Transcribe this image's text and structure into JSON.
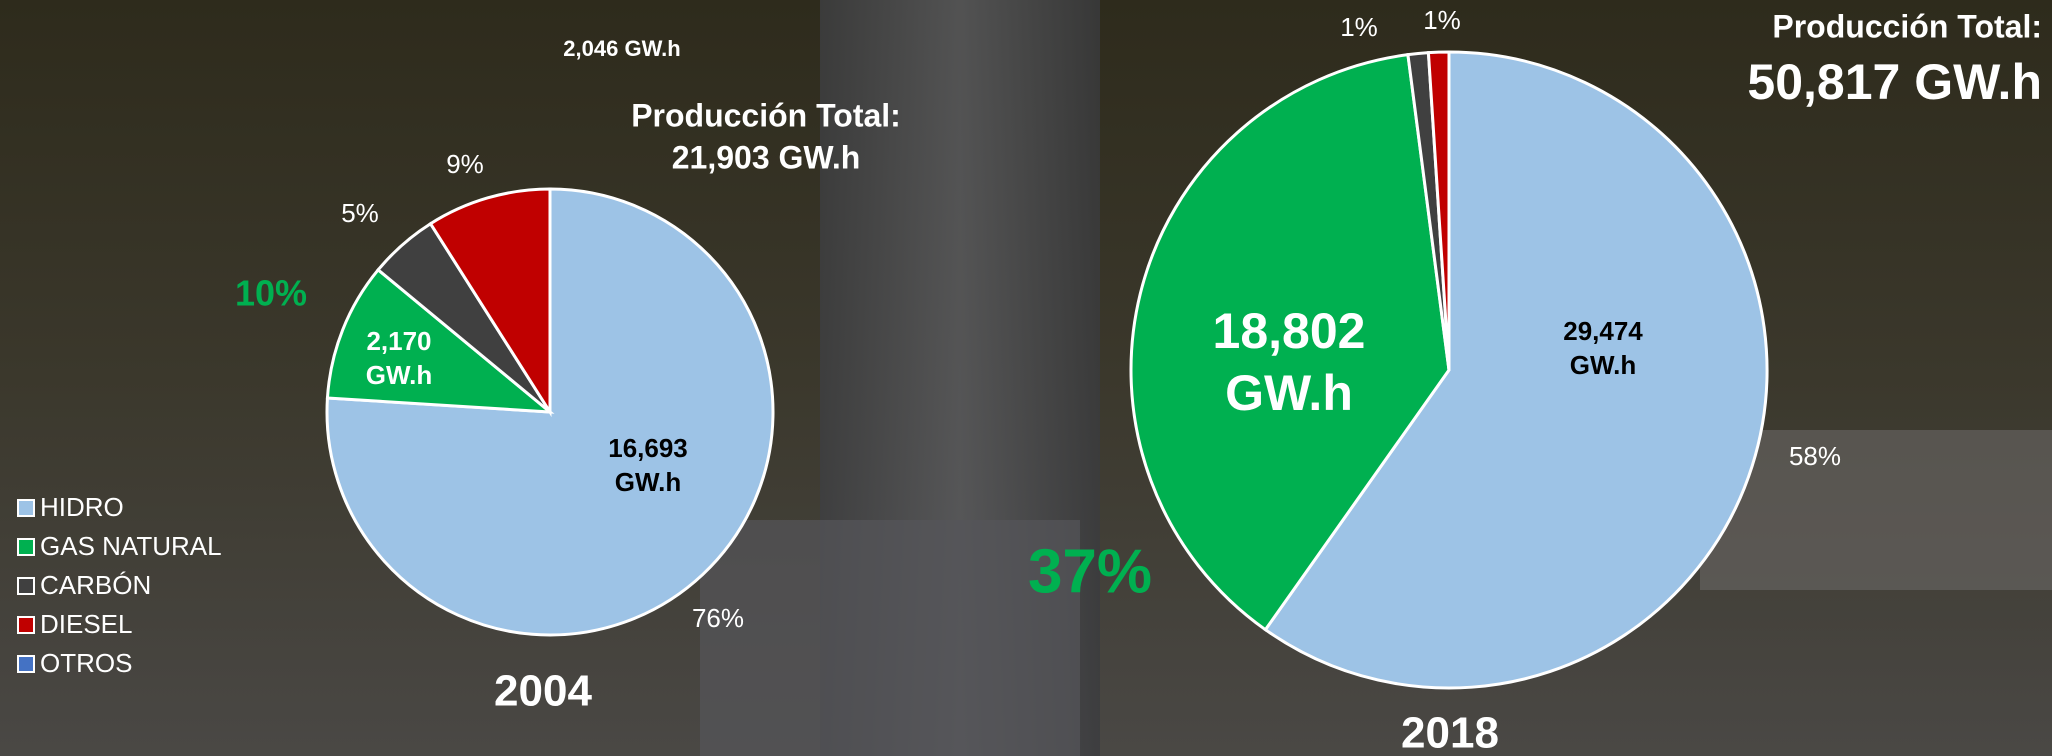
{
  "chart_data": [
    {
      "type": "pie",
      "title": "2004",
      "total_label": "Producción Total:",
      "total": "21,903 GW.h",
      "categories": [
        "HIDRO",
        "GAS NATURAL",
        "CARBÓN",
        "DIESEL"
      ],
      "colors": [
        "#9dc3e6",
        "#00b050",
        "#404040",
        "#c00000"
      ],
      "values": [
        76,
        10,
        5,
        9
      ],
      "value_labels": [
        "76%",
        "10%",
        "5%",
        "9%"
      ],
      "energy": [
        16693,
        2170,
        null,
        2046
      ],
      "energy_labels": [
        "16,693 GW.h",
        "2,170 GW.h",
        null,
        "2,046 GW.h"
      ]
    },
    {
      "type": "pie",
      "title": "2018",
      "total_label": "Producción Total:",
      "total": "50,817 GW.h",
      "categories": [
        "HIDRO",
        "GAS NATURAL",
        "CARBÓN",
        "DIESEL"
      ],
      "colors": [
        "#9dc3e6",
        "#00b050",
        "#404040",
        "#c00000"
      ],
      "values": [
        58,
        37,
        1,
        1
      ],
      "value_labels": [
        "58%",
        "37%",
        "1%",
        "1%"
      ],
      "energy": [
        29474,
        18802,
        null,
        null
      ],
      "energy_labels": [
        "29,474 GW.h",
        "18,802 GW.h",
        null,
        null
      ]
    }
  ],
  "legend": {
    "items": [
      "HIDRO",
      "GAS NATURAL",
      "CARBÓN",
      "DIESEL",
      "OTROS"
    ],
    "colors": [
      "#9dc3e6",
      "#00b050",
      "#404040",
      "#c00000",
      "#4472c4"
    ]
  }
}
